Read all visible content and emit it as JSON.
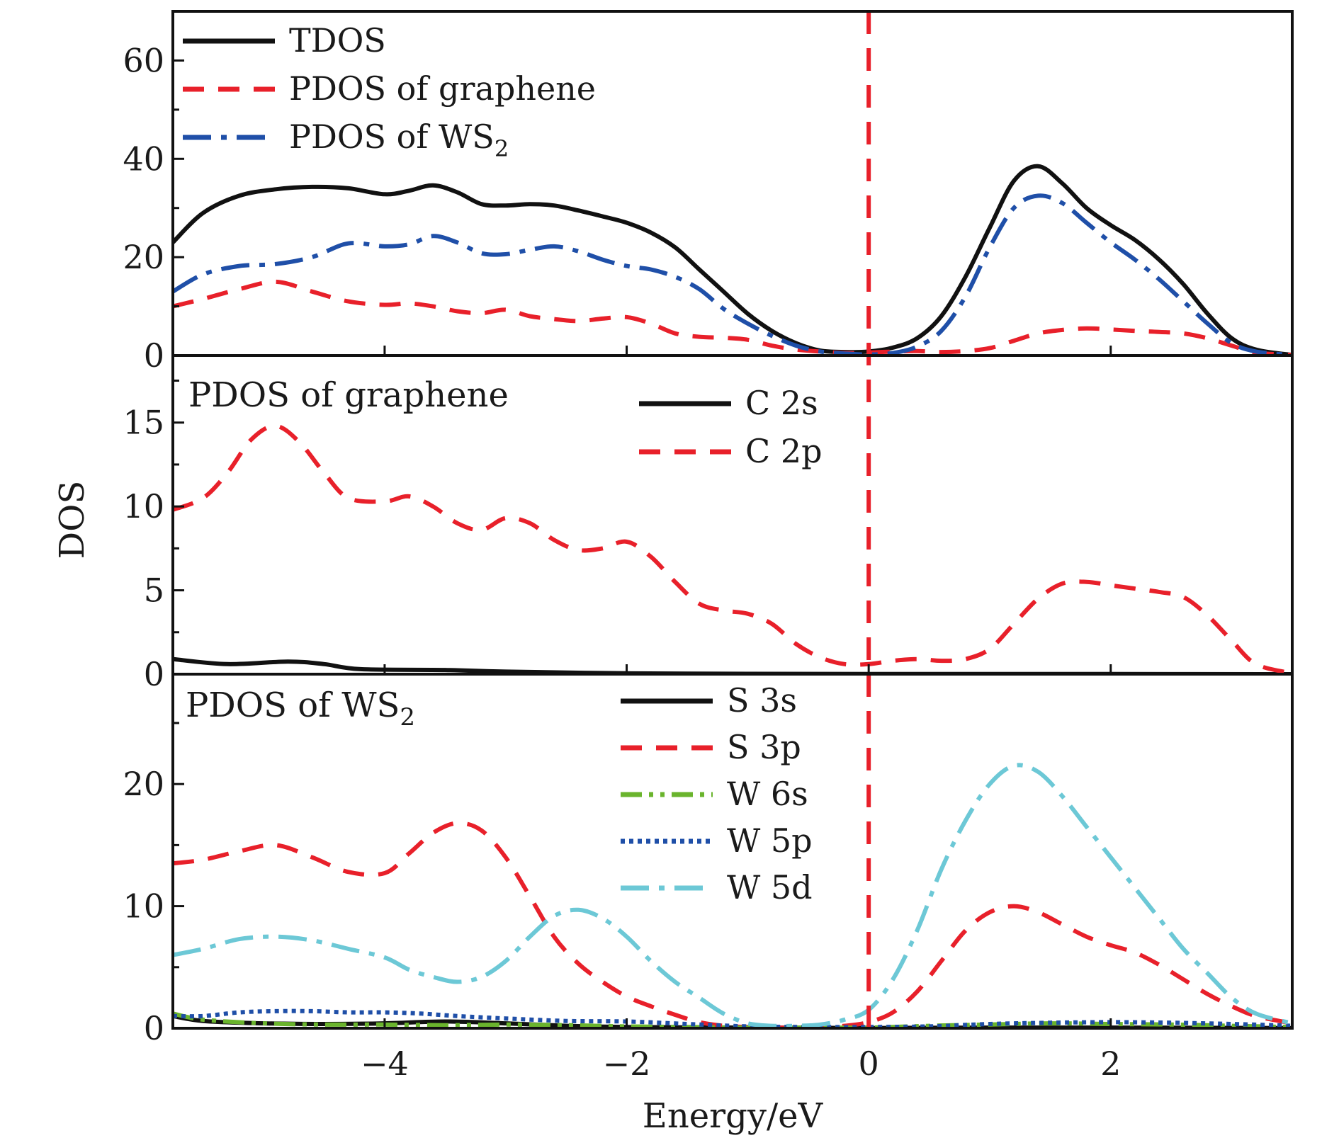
{
  "chart_data": {
    "type": "line",
    "xlabel": "Energy/eV",
    "ylabel": "DOS",
    "xlim": [
      -5.75,
      3.5
    ],
    "x_ticks": [
      {
        "value": -4,
        "label": "−4"
      },
      {
        "value": -2,
        "label": "−2"
      },
      {
        "value": 0,
        "label": "0"
      },
      {
        "value": 2,
        "label": "2"
      }
    ],
    "fermi_level": 0,
    "colors": {
      "black": "#111111",
      "red": "#e8202a",
      "blue": "#1f4fa8",
      "green": "#6ab42d",
      "cyan": "#6cc8d6",
      "fermi": "#e8202a"
    },
    "panels": [
      {
        "id": "total",
        "label": "",
        "ylim": [
          0,
          70
        ],
        "y_ticks": [
          0,
          20,
          40,
          60
        ],
        "y_minor_step": 10,
        "legend": [
          {
            "name": "TDOS",
            "style": "solid",
            "color": "black"
          },
          {
            "name": "PDOS of graphene",
            "style": "dashed",
            "color": "red"
          },
          {
            "name": "PDOS of WS",
            "subscript": "2",
            "style": "dashdot",
            "color": "blue"
          }
        ],
        "series": [
          {
            "name": "TDOS",
            "style": "solid",
            "color": "black",
            "x": [
              -5.75,
              -5.5,
              -5.2,
              -4.9,
              -4.6,
              -4.3,
              -4.0,
              -3.8,
              -3.6,
              -3.4,
              -3.2,
              -3.0,
              -2.8,
              -2.6,
              -2.4,
              -2.2,
              -2.0,
              -1.8,
              -1.6,
              -1.4,
              -1.2,
              -1.0,
              -0.8,
              -0.6,
              -0.4,
              -0.2,
              0.0,
              0.2,
              0.4,
              0.6,
              0.8,
              1.0,
              1.2,
              1.4,
              1.6,
              1.8,
              2.0,
              2.2,
              2.4,
              2.6,
              2.8,
              3.0,
              3.2,
              3.5
            ],
            "y": [
              23,
              29,
              32.5,
              33.8,
              34.3,
              34,
              32.8,
              33.5,
              34.6,
              33.2,
              30.8,
              30.5,
              30.8,
              30.5,
              29.5,
              28.3,
              27,
              25,
              22,
              17.5,
              13,
              8.5,
              5,
              2.5,
              1,
              0.7,
              0.8,
              1.6,
              3.5,
              8,
              16,
              26,
              35.5,
              38.5,
              35,
              30,
              26.5,
              23.5,
              19.5,
              14.5,
              8.5,
              3.5,
              1.2,
              0.1
            ]
          },
          {
            "name": "PDOS of graphene",
            "style": "dashed",
            "color": "red",
            "x": [
              -5.75,
              -5.5,
              -5.2,
              -4.9,
              -4.6,
              -4.3,
              -4.0,
              -3.8,
              -3.6,
              -3.4,
              -3.2,
              -3.0,
              -2.8,
              -2.6,
              -2.4,
              -2.2,
              -2.0,
              -1.8,
              -1.6,
              -1.4,
              -1.2,
              -1.0,
              -0.8,
              -0.6,
              -0.4,
              -0.2,
              0.0,
              0.2,
              0.4,
              0.6,
              0.8,
              1.0,
              1.2,
              1.4,
              1.6,
              1.8,
              2.0,
              2.2,
              2.4,
              2.6,
              2.8,
              3.0,
              3.2,
              3.5
            ],
            "y": [
              10,
              11.5,
              13.5,
              15,
              13,
              11,
              10.3,
              10.6,
              10,
              9,
              8.6,
              9.3,
              8,
              7.4,
              7,
              7.5,
              7.8,
              6.5,
              4.5,
              3.8,
              3.6,
              3.2,
              2,
              1.2,
              0.8,
              0.5,
              0.6,
              0.8,
              0.9,
              0.7,
              0.9,
              1.5,
              3,
              4.5,
              5.2,
              5.5,
              5.3,
              5,
              4.8,
              4.5,
              3.5,
              2,
              0.6,
              0.1
            ]
          },
          {
            "name": "PDOS of WS2",
            "style": "dashdot",
            "color": "blue",
            "x": [
              -5.75,
              -5.5,
              -5.2,
              -4.9,
              -4.6,
              -4.3,
              -4.0,
              -3.8,
              -3.6,
              -3.4,
              -3.2,
              -3.0,
              -2.8,
              -2.6,
              -2.4,
              -2.2,
              -2.0,
              -1.8,
              -1.6,
              -1.4,
              -1.2,
              -1.0,
              -0.8,
              -0.6,
              -0.4,
              -0.2,
              0.0,
              0.2,
              0.4,
              0.6,
              0.8,
              1.0,
              1.2,
              1.4,
              1.6,
              1.8,
              2.0,
              2.2,
              2.4,
              2.6,
              2.8,
              3.0,
              3.2,
              3.5
            ],
            "y": [
              13,
              16.5,
              18.2,
              18.6,
              20,
              22.8,
              22.2,
              22.6,
              24.3,
              23,
              20.8,
              20.6,
              21.5,
              22.2,
              21.2,
              19.5,
              18.2,
              17.5,
              16,
              13.5,
              9.5,
              6.5,
              4,
              2,
              0.8,
              0.4,
              0.2,
              0.5,
              1.8,
              5,
              12,
              22,
              30,
              32.5,
              31,
              27,
              23,
              19.5,
              15.5,
              11,
              6.5,
              2.5,
              0.8,
              0.1
            ]
          }
        ]
      },
      {
        "id": "graphene",
        "label": "PDOS of graphene",
        "ylim": [
          0,
          19
        ],
        "y_ticks": [
          0,
          5,
          10,
          15
        ],
        "y_minor_step": 2.5,
        "legend": [
          {
            "name": "C 2s",
            "style": "solid",
            "color": "black"
          },
          {
            "name": "C 2p",
            "style": "dashed",
            "color": "red"
          }
        ],
        "series": [
          {
            "name": "C 2s",
            "style": "solid",
            "color": "black",
            "x": [
              -5.75,
              -5.3,
              -4.8,
              -4.5,
              -4.2,
              -3.5,
              -3.0,
              -2.0,
              -1.0,
              0.0,
              1.0,
              2.0,
              3.5
            ],
            "y": [
              0.9,
              0.6,
              0.75,
              0.6,
              0.3,
              0.25,
              0.15,
              0.05,
              0.02,
              0.01,
              0.01,
              0.01,
              0.0
            ]
          },
          {
            "name": "C 2p",
            "style": "dashed",
            "color": "red",
            "x": [
              -5.75,
              -5.5,
              -5.3,
              -5.1,
              -4.9,
              -4.7,
              -4.5,
              -4.3,
              -4.0,
              -3.8,
              -3.6,
              -3.4,
              -3.2,
              -3.0,
              -2.8,
              -2.6,
              -2.4,
              -2.2,
              -2.0,
              -1.8,
              -1.6,
              -1.4,
              -1.2,
              -1.0,
              -0.8,
              -0.6,
              -0.4,
              -0.2,
              0.0,
              0.2,
              0.4,
              0.6,
              0.8,
              1.0,
              1.2,
              1.4,
              1.6,
              1.8,
              2.0,
              2.2,
              2.4,
              2.6,
              2.8,
              3.0,
              3.2,
              3.5
            ],
            "y": [
              9.8,
              10.5,
              12,
              14,
              14.8,
              13.8,
              12,
              10.5,
              10.3,
              10.6,
              10,
              9,
              8.6,
              9.3,
              9,
              8,
              7.4,
              7.5,
              7.9,
              7,
              5.5,
              4.2,
              3.8,
              3.6,
              3,
              1.8,
              1,
              0.6,
              0.6,
              0.8,
              0.9,
              0.8,
              0.9,
              1.5,
              3,
              4.5,
              5.4,
              5.5,
              5.3,
              5.1,
              4.9,
              4.6,
              3.5,
              2,
              0.6,
              0.05
            ]
          }
        ]
      },
      {
        "id": "ws2",
        "label": "PDOS of WS",
        "label_subscript": "2",
        "ylim": [
          0,
          29
        ],
        "y_ticks": [
          0,
          10,
          20
        ],
        "y_minor_step": 5,
        "legend": [
          {
            "name": "S 3s",
            "style": "solid",
            "color": "black"
          },
          {
            "name": "S 3p",
            "style": "dashed",
            "color": "red"
          },
          {
            "name": "W 6s",
            "style": "dashdotdot",
            "color": "green"
          },
          {
            "name": "W 5p",
            "style": "dotted",
            "color": "blue"
          },
          {
            "name": "W 5d",
            "style": "dashdot",
            "color": "cyan"
          }
        ],
        "series": [
          {
            "name": "S 3s",
            "style": "solid",
            "color": "black",
            "x": [
              -5.75,
              -5.5,
              -5.0,
              -4.5,
              -4.0,
              -3.5,
              -3.0,
              -2.5,
              -2.0,
              -1.0,
              0.0,
              1.0,
              2.0,
              3.5
            ],
            "y": [
              1.0,
              0.6,
              0.4,
              0.35,
              0.4,
              0.55,
              0.4,
              0.2,
              0.1,
              0.05,
              0.02,
              0.05,
              0.05,
              0.02
            ]
          },
          {
            "name": "S 3p",
            "style": "dashed",
            "color": "red",
            "x": [
              -5.75,
              -5.5,
              -5.2,
              -4.9,
              -4.6,
              -4.3,
              -4.0,
              -3.8,
              -3.6,
              -3.4,
              -3.2,
              -3.0,
              -2.8,
              -2.6,
              -2.4,
              -2.2,
              -2.0,
              -1.8,
              -1.6,
              -1.4,
              -1.2,
              -1.0,
              -0.8,
              -0.6,
              -0.4,
              -0.2,
              0.0,
              0.2,
              0.4,
              0.6,
              0.8,
              1.0,
              1.2,
              1.4,
              1.6,
              1.8,
              2.0,
              2.2,
              2.4,
              2.6,
              2.8,
              3.0,
              3.2,
              3.5
            ],
            "y": [
              13.5,
              13.8,
              14.5,
              15,
              14,
              12.8,
              12.7,
              14.3,
              16,
              16.8,
              16.2,
              14,
              10.8,
              7.5,
              5.3,
              3.8,
              2.6,
              1.8,
              1.1,
              0.5,
              0.2,
              0.1,
              0.05,
              0.05,
              0.1,
              0.2,
              0.5,
              1.3,
              3,
              5.5,
              8,
              9.5,
              10,
              9.5,
              8.5,
              7.5,
              6.8,
              6.2,
              5.2,
              4,
              2.8,
              1.8,
              1,
              0.4
            ]
          },
          {
            "name": "W 6s",
            "style": "dashdotdot",
            "color": "green",
            "x": [
              -5.75,
              -5.5,
              -5.0,
              -4.5,
              -4.0,
              -3.5,
              -3.0,
              -2.5,
              -2.0,
              -1.5,
              -1.0,
              -0.5,
              0.0,
              0.5,
              1.0,
              1.5,
              2.0,
              2.5,
              3.0,
              3.5
            ],
            "y": [
              1.2,
              0.7,
              0.4,
              0.3,
              0.3,
              0.25,
              0.3,
              0.25,
              0.15,
              0.1,
              0.05,
              0.05,
              0.05,
              0.2,
              0.3,
              0.4,
              0.35,
              0.3,
              0.2,
              0.1
            ]
          },
          {
            "name": "W 5p",
            "style": "dotted",
            "color": "blue",
            "x": [
              -5.75,
              -5.5,
              -5.2,
              -4.9,
              -4.6,
              -4.3,
              -4.0,
              -3.7,
              -3.4,
              -3.0,
              -2.5,
              -2.0,
              -1.5,
              -1.0,
              -0.5,
              0.0,
              0.5,
              1.0,
              1.5,
              2.0,
              2.5,
              3.0,
              3.5
            ],
            "y": [
              1.0,
              1.0,
              1.3,
              1.4,
              1.4,
              1.3,
              1.3,
              1.2,
              1.0,
              0.8,
              0.6,
              0.55,
              0.35,
              0.15,
              0.1,
              0.1,
              0.15,
              0.35,
              0.45,
              0.5,
              0.45,
              0.35,
              0.2
            ]
          },
          {
            "name": "W 5d",
            "style": "dashdot",
            "color": "cyan",
            "x": [
              -5.75,
              -5.5,
              -5.2,
              -4.9,
              -4.6,
              -4.3,
              -4.0,
              -3.8,
              -3.6,
              -3.4,
              -3.2,
              -3.0,
              -2.8,
              -2.6,
              -2.4,
              -2.2,
              -2.0,
              -1.8,
              -1.6,
              -1.4,
              -1.2,
              -1.0,
              -0.8,
              -0.6,
              -0.4,
              -0.2,
              0.0,
              0.2,
              0.4,
              0.6,
              0.8,
              1.0,
              1.2,
              1.4,
              1.6,
              1.8,
              2.0,
              2.2,
              2.4,
              2.6,
              2.8,
              3.0,
              3.2,
              3.5
            ],
            "y": [
              6,
              6.5,
              7.3,
              7.5,
              7.2,
              6.5,
              5.8,
              4.8,
              4.2,
              3.8,
              4.2,
              5.5,
              7.5,
              9.2,
              9.7,
              9,
              7.5,
              5.5,
              3.8,
              2.5,
              1.2,
              0.4,
              0.2,
              0.2,
              0.3,
              0.7,
              1.5,
              4,
              8,
              13,
              17,
              20,
              21.5,
              21,
              19,
              16.5,
              14,
              11.5,
              9,
              6.5,
              4.5,
              2.5,
              1.2,
              0.4
            ]
          }
        ]
      }
    ]
  }
}
